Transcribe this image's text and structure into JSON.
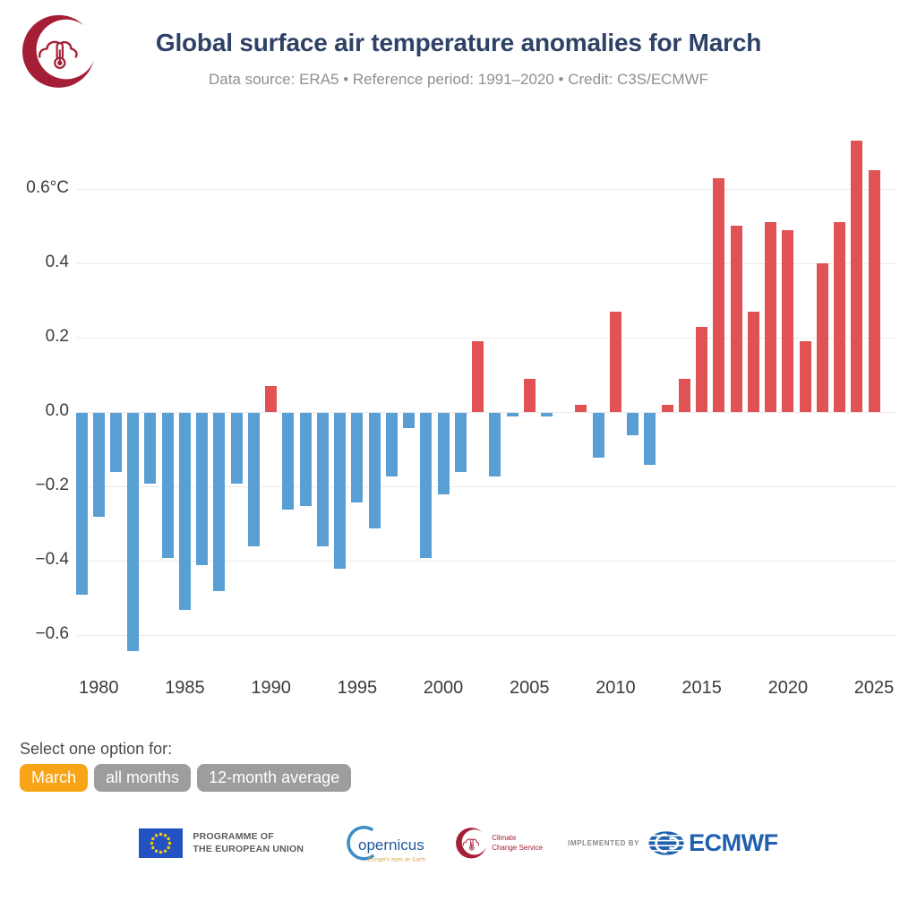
{
  "chart_data": {
    "type": "bar",
    "title": "Global surface air temperature anomalies for March",
    "subtitle": "Data source: ERA5 • Reference period: 1991–2020 • Credit: C3S/ECMWF",
    "unit": "°C",
    "categories": [
      1979,
      1980,
      1981,
      1982,
      1983,
      1984,
      1985,
      1986,
      1987,
      1988,
      1989,
      1990,
      1991,
      1992,
      1993,
      1994,
      1995,
      1996,
      1997,
      1998,
      1999,
      2000,
      2001,
      2002,
      2003,
      2004,
      2005,
      2006,
      2007,
      2008,
      2009,
      2010,
      2011,
      2012,
      2013,
      2014,
      2015,
      2016,
      2017,
      2018,
      2019,
      2020,
      2021,
      2022,
      2023,
      2024,
      2025
    ],
    "values": [
      -0.49,
      -0.28,
      -0.16,
      -0.64,
      -0.19,
      -0.39,
      -0.53,
      -0.41,
      -0.48,
      -0.19,
      -0.36,
      0.07,
      -0.26,
      -0.25,
      -0.36,
      -0.42,
      -0.24,
      -0.31,
      -0.17,
      -0.04,
      -0.39,
      -0.22,
      -0.16,
      0.19,
      -0.17,
      -0.01,
      0.09,
      -0.01,
      0.0,
      0.02,
      -0.12,
      0.27,
      -0.06,
      -0.14,
      0.02,
      0.09,
      0.23,
      0.63,
      0.5,
      0.27,
      0.51,
      0.49,
      0.19,
      0.4,
      0.51,
      0.73,
      0.65
    ],
    "yticks": [
      0.6,
      0.4,
      0.2,
      0.0,
      -0.2,
      -0.4,
      -0.6
    ],
    "ytick_labels": [
      "0.6°C",
      "0.4",
      "0.2",
      "0.0",
      "−0.2",
      "−0.4",
      "−0.6"
    ],
    "xtick_years": [
      1980,
      1985,
      1990,
      1995,
      2000,
      2005,
      2010,
      2015,
      2020,
      2025
    ],
    "ylim": [
      -0.7,
      0.8
    ],
    "grid": true,
    "legend": "none",
    "positive_color": "#e15254",
    "negative_color": "#5a9fd4"
  },
  "controls": {
    "label": "Select one option for:",
    "selected_color": "#f7a416",
    "unselected_color": "#9d9da0",
    "options": [
      {
        "label": "March",
        "selected": true
      },
      {
        "label": "all months",
        "selected": false
      },
      {
        "label": "12-month average",
        "selected": false
      }
    ]
  },
  "footer": {
    "eu_programme_line1": "PROGRAMME OF",
    "eu_programme_line2": "THE EUROPEAN UNION",
    "copernicus_name": "opernicus",
    "copernicus_tagline": "Europe's eyes on Earth",
    "c3s_line1": "Climate",
    "c3s_line2": "Change Service",
    "implemented_by": "IMPLEMENTED BY",
    "ecmwf": "ECMWF"
  }
}
